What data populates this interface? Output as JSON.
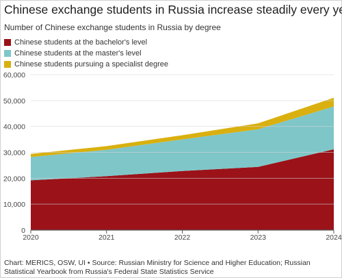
{
  "title": "Chinese exchange students in Russia increase steadily every year",
  "subtitle": "Number of Chinese exchange students in Russia by degree",
  "footnote": "Chart: MERICS, OSW, UI • Source: Russian Ministry for Science and Higher Education; Russian Statistical Yearbook from Russia's Federal State Statistics Service",
  "chart_data": {
    "type": "area",
    "stacked": true,
    "x": [
      2020,
      2021,
      2022,
      2023,
      2024
    ],
    "ylim": [
      0,
      60000
    ],
    "yticks": [
      "0",
      "10,000",
      "20,000",
      "30,000",
      "40,000",
      "50,000",
      "60,000"
    ],
    "ytick_values": [
      0,
      10000,
      20000,
      30000,
      40000,
      50000,
      60000
    ],
    "xticks": [
      "2020",
      "2021",
      "2022",
      "2023",
      "2024"
    ],
    "grid": true,
    "legend_position": "top-left",
    "series": [
      {
        "name": "Chinese students at the bachelor's level",
        "color": "#9b1219",
        "values": [
          19200,
          20800,
          22800,
          24400,
          31200
        ]
      },
      {
        "name": "Chinese students at the master's level",
        "color": "#7fc6c8",
        "values": [
          9000,
          10200,
          12200,
          14500,
          16500
        ]
      },
      {
        "name": "Chinese students pursuing a specialist degree",
        "color": "#d9b00f",
        "values": [
          1200,
          1400,
          1600,
          2300,
          3400
        ]
      }
    ]
  }
}
